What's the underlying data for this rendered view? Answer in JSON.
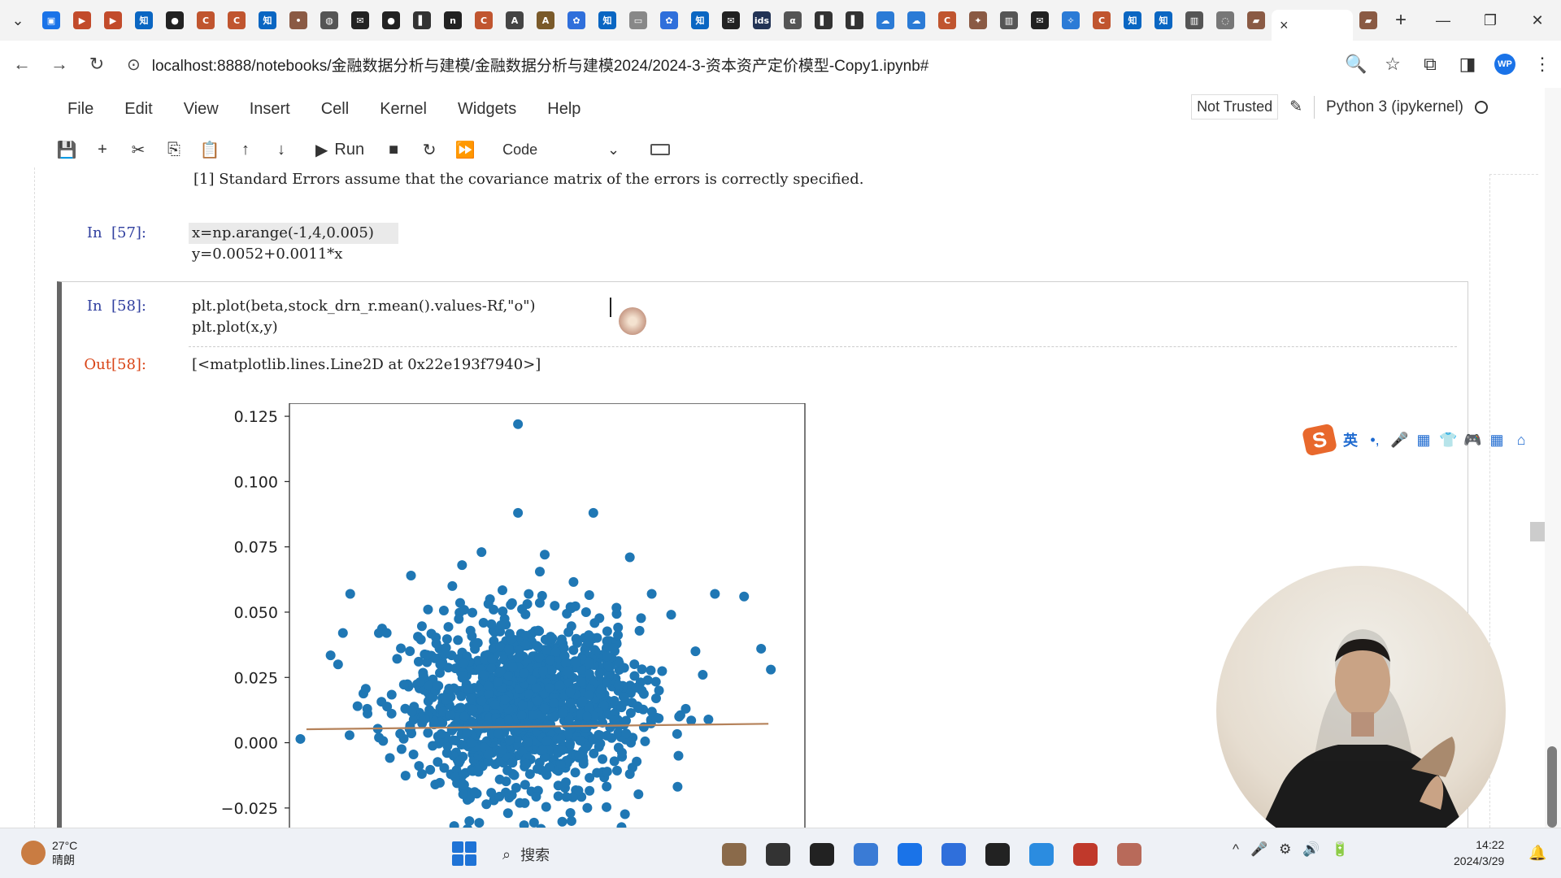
{
  "browser": {
    "tabs_chevron": "⌄",
    "favicons": [
      {
        "name": "calendar-tab",
        "color": "#1a73e8",
        "glyph": "▣"
      },
      {
        "name": "video-tab-1",
        "color": "#c24b2b",
        "glyph": "▶"
      },
      {
        "name": "video-tab-2",
        "color": "#c24b2b",
        "glyph": "▶"
      },
      {
        "name": "zhihu-tab-1",
        "color": "#0a66c2",
        "glyph": "知"
      },
      {
        "name": "github-tab-1",
        "color": "#222222",
        "glyph": "●"
      },
      {
        "name": "c-tab-1",
        "color": "#c0552f",
        "glyph": "C"
      },
      {
        "name": "c-tab-2",
        "color": "#c0552f",
        "glyph": "C"
      },
      {
        "name": "zhihu-tab-2",
        "color": "#0a66c2",
        "glyph": "知"
      },
      {
        "name": "fox-tab",
        "color": "#8a5a44",
        "glyph": "•"
      },
      {
        "name": "globe-tab",
        "color": "#555555",
        "glyph": "◍"
      },
      {
        "name": "mail-tab-1",
        "color": "#222222",
        "glyph": "✉"
      },
      {
        "name": "github-tab-2",
        "color": "#222222",
        "glyph": "●"
      },
      {
        "name": "terminal-tab",
        "color": "#333333",
        "glyph": "▌"
      },
      {
        "name": "n-tab",
        "color": "#222222",
        "glyph": "n"
      },
      {
        "name": "c-tab-3",
        "color": "#c0552f",
        "glyph": "C"
      },
      {
        "name": "a-tab",
        "color": "#444444",
        "glyph": "A"
      },
      {
        "name": "ai-tab",
        "color": "#7a5a2a",
        "glyph": "A"
      },
      {
        "name": "baidu-tab-1",
        "color": "#2f6fdb",
        "glyph": "✿"
      },
      {
        "name": "zhihu-tab-3",
        "color": "#0a66c2",
        "glyph": "知"
      },
      {
        "name": "image-tab",
        "color": "#888888",
        "glyph": "▭"
      },
      {
        "name": "baidu-tab-2",
        "color": "#2f6fdb",
        "glyph": "✿"
      },
      {
        "name": "zhihu-tab-4",
        "color": "#0a66c2",
        "glyph": "知"
      },
      {
        "name": "mail-tab-2",
        "color": "#222222",
        "glyph": "✉"
      },
      {
        "name": "ids-tab",
        "color": "#223355",
        "glyph": "ids"
      },
      {
        "name": "alpha-tab",
        "color": "#555555",
        "glyph": "α"
      },
      {
        "name": "terminal-tab-2",
        "color": "#333333",
        "glyph": "▌"
      },
      {
        "name": "terminal-tab-3",
        "color": "#333333",
        "glyph": "▌"
      },
      {
        "name": "cloud-tab-1",
        "color": "#2b7bd6",
        "glyph": "☁"
      },
      {
        "name": "cloud-tab-2",
        "color": "#2b7bd6",
        "glyph": "☁"
      },
      {
        "name": "c-tab-4",
        "color": "#c0552f",
        "glyph": "C"
      },
      {
        "name": "runner-tab",
        "color": "#8a5a44",
        "glyph": "✦"
      },
      {
        "name": "book-tab",
        "color": "#555555",
        "glyph": "▥"
      },
      {
        "name": "mail-tab-3",
        "color": "#222222",
        "glyph": "✉"
      },
      {
        "name": "bird-tab",
        "color": "#2b7bd6",
        "glyph": "✧"
      },
      {
        "name": "c-tab-5",
        "color": "#c0552f",
        "glyph": "C"
      },
      {
        "name": "zhihu-tab-5",
        "color": "#0a66c2",
        "glyph": "知"
      },
      {
        "name": "zhihu-tab-6",
        "color": "#0a66c2",
        "glyph": "知"
      },
      {
        "name": "book-tab-2",
        "color": "#555555",
        "glyph": "▥"
      },
      {
        "name": "loading-tab",
        "color": "#777777",
        "glyph": "◌"
      },
      {
        "name": "bookmark-tab",
        "color": "#8a5a44",
        "glyph": "▰"
      }
    ],
    "active_tab_close": "×",
    "last_tab_glyph": "▰",
    "new_tab": "+",
    "window_controls": {
      "minimize": "—",
      "maximize": "❐",
      "close": "✕"
    },
    "nav": {
      "back": "←",
      "forward": "→",
      "reload": "↻"
    },
    "site_info_icon": "⊙",
    "url": "localhost:8888/notebooks/金融数据分析与建模/金融数据分析与建模2024/2024-3-资本资产定价模型-Copy1.ipynb#",
    "right_icons": {
      "zoom": "🔍",
      "star": "☆",
      "extensions": "⧉",
      "sidebar": "◨",
      "profile": "WP",
      "more": "⋮"
    }
  },
  "jupyter": {
    "menu": [
      "File",
      "Edit",
      "View",
      "Insert",
      "Cell",
      "Kernel",
      "Widgets",
      "Help"
    ],
    "not_trusted": "Not Trusted",
    "edit_icon": "✎",
    "kernel_name": "Python 3 (ipykernel)",
    "toolbar": {
      "save": "💾",
      "add": "+",
      "cut": "✂",
      "copy": "⎘",
      "paste": "📋",
      "move_up": "↑",
      "move_down": "↓",
      "run_icon": "▶",
      "run_label": "Run",
      "stop": "■",
      "restart": "↻",
      "fast_forward": "⏩",
      "cell_type": "Code",
      "cell_type_arrow": "⌄"
    }
  },
  "notebook": {
    "note_line": "[1] Standard Errors assume that the covariance matrix of the errors is correctly specified.",
    "cell57": {
      "prompt": "In  [57]:",
      "lines": [
        "x=np.arange(-1,4,0.005)",
        "y=0.0052+0.0011*x"
      ]
    },
    "cell58": {
      "prompt": "In  [58]:",
      "lines": [
        "plt.plot(beta,stock_drn_r.mean().values-Rf,\"o\")",
        "plt.plot(x,y)"
      ],
      "out_prompt": "Out[58]:",
      "out_text": "[<matplotlib.lines.Line2D at 0x22e193f7940>]"
    }
  },
  "chart_data": {
    "type": "scatter",
    "title": "",
    "xlabel": "",
    "ylabel": "",
    "ylim": [
      -0.035,
      0.13
    ],
    "xlim": [
      -0.12,
      2.0
    ],
    "yticks": [
      "0.125",
      "0.100",
      "0.075",
      "0.050",
      "0.025",
      "0.000",
      "−0.025"
    ],
    "ytick_values": [
      0.125,
      0.1,
      0.075,
      0.05,
      0.025,
      0.0,
      -0.025
    ],
    "grid": false,
    "series": [
      {
        "type": "scatter",
        "color": "#1f77b4",
        "points": [
          [
            0.82,
            0.122
          ],
          [
            0.82,
            0.088
          ],
          [
            1.13,
            0.088
          ],
          [
            0.67,
            0.073
          ],
          [
            0.93,
            0.072
          ],
          [
            0.38,
            0.064
          ],
          [
            0.59,
            0.068
          ],
          [
            1.28,
            0.071
          ],
          [
            0.13,
            0.057
          ],
          [
            1.75,
            0.056
          ],
          [
            1.63,
            0.057
          ],
          [
            1.37,
            0.057
          ],
          [
            1.45,
            0.049
          ],
          [
            0.28,
            0.042
          ],
          [
            0.1,
            0.042
          ],
          [
            0.08,
            0.03
          ],
          [
            1.82,
            0.036
          ],
          [
            1.86,
            0.028
          ],
          [
            1.55,
            0.035
          ],
          [
            1.58,
            0.026
          ],
          [
            0.16,
            0.014
          ],
          [
            0.2,
            0.013
          ],
          [
            1.51,
            0.013
          ],
          [
            0.55,
            0.06
          ],
          [
            0.45,
            0.051
          ],
          [
            1.4,
            0.02
          ],
          [
            1.48,
            -0.005
          ],
          [
            1.28,
            -0.012
          ],
          [
            0.62,
            -0.03
          ],
          [
            1.04,
            -0.03
          ],
          [
            0.5,
            0.03
          ],
          [
            0.75,
            0.045
          ],
          [
            1.1,
            0.05
          ],
          [
            0.6,
            0.01
          ],
          [
            0.9,
            -0.01
          ]
        ],
        "cluster_center": [
          0.85,
          0.015
        ],
        "cluster_spread": [
          0.23,
          0.016
        ],
        "cluster_count": 1350
      },
      {
        "type": "line",
        "name": "",
        "color": "#b5825a",
        "x": [
          -1.0,
          3.995
        ],
        "y": [
          0.0041,
          0.009595
        ]
      }
    ]
  },
  "ime": {
    "logo": "S",
    "lang": "英",
    "items": [
      "•,",
      "🎤",
      "▦",
      "👕",
      "🎮",
      "▦",
      "⌂"
    ]
  },
  "taskbar": {
    "temperature": "27°C",
    "weather": "晴朗",
    "search_label": "搜索",
    "apps": [
      {
        "name": "browser-app",
        "color": "#8a6a4a"
      },
      {
        "name": "file-app",
        "color": "#333333"
      },
      {
        "name": "terminal-app",
        "color": "#222222"
      },
      {
        "name": "explorer-app",
        "color": "#3a7bd5"
      },
      {
        "name": "chrome-app",
        "color": "#1a73e8"
      },
      {
        "name": "feishu-app",
        "color": "#2f6fdb"
      },
      {
        "name": "cmd-app",
        "color": "#222222"
      },
      {
        "name": "vscode-app",
        "color": "#2b8ce0"
      },
      {
        "name": "wps-app",
        "color": "#c0392b"
      },
      {
        "name": "record-app",
        "color": "#b86a5a"
      }
    ],
    "tray": [
      "^",
      "🎤",
      "⚙",
      "🔊",
      "🔋"
    ],
    "time": "14:22",
    "date": "2024/3/29",
    "bell": "🔔"
  }
}
